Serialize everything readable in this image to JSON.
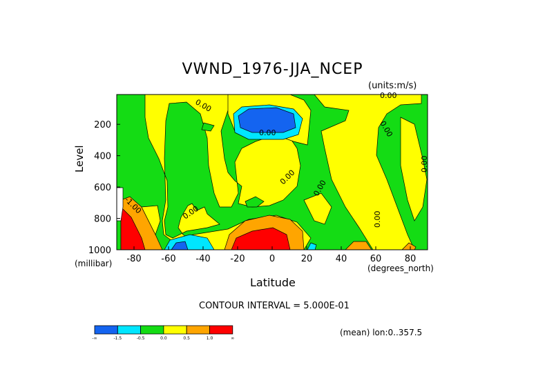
{
  "chart_data": {
    "type": "heatmap",
    "title": "VWND_1976-JJA_NCEP",
    "units_label": "(units:m/s)",
    "xlabel": "Latitude",
    "x_unit_label": "(degrees_north)",
    "ylabel": "Level",
    "y_unit_label": "(millibar)",
    "x_ticks": [
      "-80",
      "-60",
      "-40",
      "-20",
      "0",
      "20",
      "40",
      "60",
      "80"
    ],
    "x_tick_values": [
      -80,
      -60,
      -40,
      -20,
      0,
      20,
      40,
      60,
      80
    ],
    "y_ticks": [
      "200",
      "400",
      "600",
      "800",
      "1000"
    ],
    "y_tick_values": [
      200,
      400,
      600,
      800,
      1000
    ],
    "xlim": [
      -90,
      90
    ],
    "ylim": [
      10,
      1000
    ],
    "y_inverted": true,
    "contour_interval_label": "CONTOUR INTERVAL = 5.000E-01",
    "mean_label": "(mean) lon:0..357.5",
    "contour_labels": [
      "0.00",
      "0.00",
      "0.00",
      "0.00",
      "0.00",
      "0.00",
      "0.00",
      "0.00",
      "0.00",
      "-1.00"
    ],
    "colorbar": {
      "colors": [
        "#1464f0",
        "#00e6ff",
        "#14dc14",
        "#ffff00",
        "#ffa500",
        "#ff0000"
      ],
      "labels": [
        "-∞",
        "-1.5",
        "-0.5",
        "0.0",
        "0.5",
        "1.0",
        "∞"
      ]
    },
    "features": [
      {
        "name": "negative core upper troposphere",
        "lat": [
          -15,
          10
        ],
        "level": [
          100,
          230
        ],
        "value": "< -1.5"
      },
      {
        "name": "positive core near surface",
        "lat": [
          -25,
          15
        ],
        "level": [
          780,
          1000
        ],
        "value": "> 1.0"
      },
      {
        "name": "negative near-surface southern midlatitudes",
        "lat": [
          -60,
          -40
        ],
        "level": [
          880,
          1000
        ],
        "value": "< -1.5"
      }
    ]
  }
}
